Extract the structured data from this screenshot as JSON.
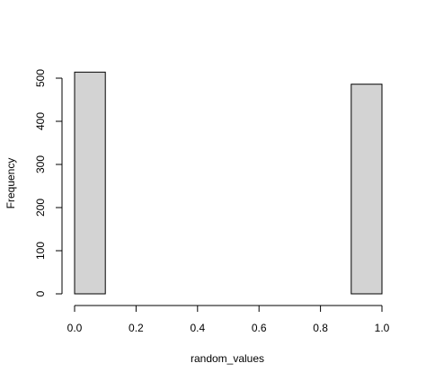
{
  "chart_data": {
    "type": "bar",
    "title": "",
    "xlabel": "random_values",
    "ylabel": "Frequency",
    "xlim": [
      0,
      1
    ],
    "ylim": [
      0,
      500
    ],
    "x_ticks": [
      "0.0",
      "0.2",
      "0.4",
      "0.6",
      "0.8",
      "1.0"
    ],
    "y_ticks": [
      "0",
      "100",
      "200",
      "300",
      "400",
      "500"
    ],
    "bins": [
      {
        "start": 0.0,
        "end": 0.1,
        "count": 514
      },
      {
        "start": 0.1,
        "end": 0.2,
        "count": 0
      },
      {
        "start": 0.2,
        "end": 0.3,
        "count": 0
      },
      {
        "start": 0.3,
        "end": 0.4,
        "count": 0
      },
      {
        "start": 0.4,
        "end": 0.5,
        "count": 0
      },
      {
        "start": 0.5,
        "end": 0.6,
        "count": 0
      },
      {
        "start": 0.6,
        "end": 0.7,
        "count": 0
      },
      {
        "start": 0.7,
        "end": 0.8,
        "count": 0
      },
      {
        "start": 0.8,
        "end": 0.9,
        "count": 0
      },
      {
        "start": 0.9,
        "end": 1.0,
        "count": 486
      }
    ],
    "grid": false,
    "colors": {
      "bar_fill": "#d3d3d3",
      "bar_stroke": "#000000",
      "axis": "#000000",
      "background": "#ffffff"
    }
  }
}
